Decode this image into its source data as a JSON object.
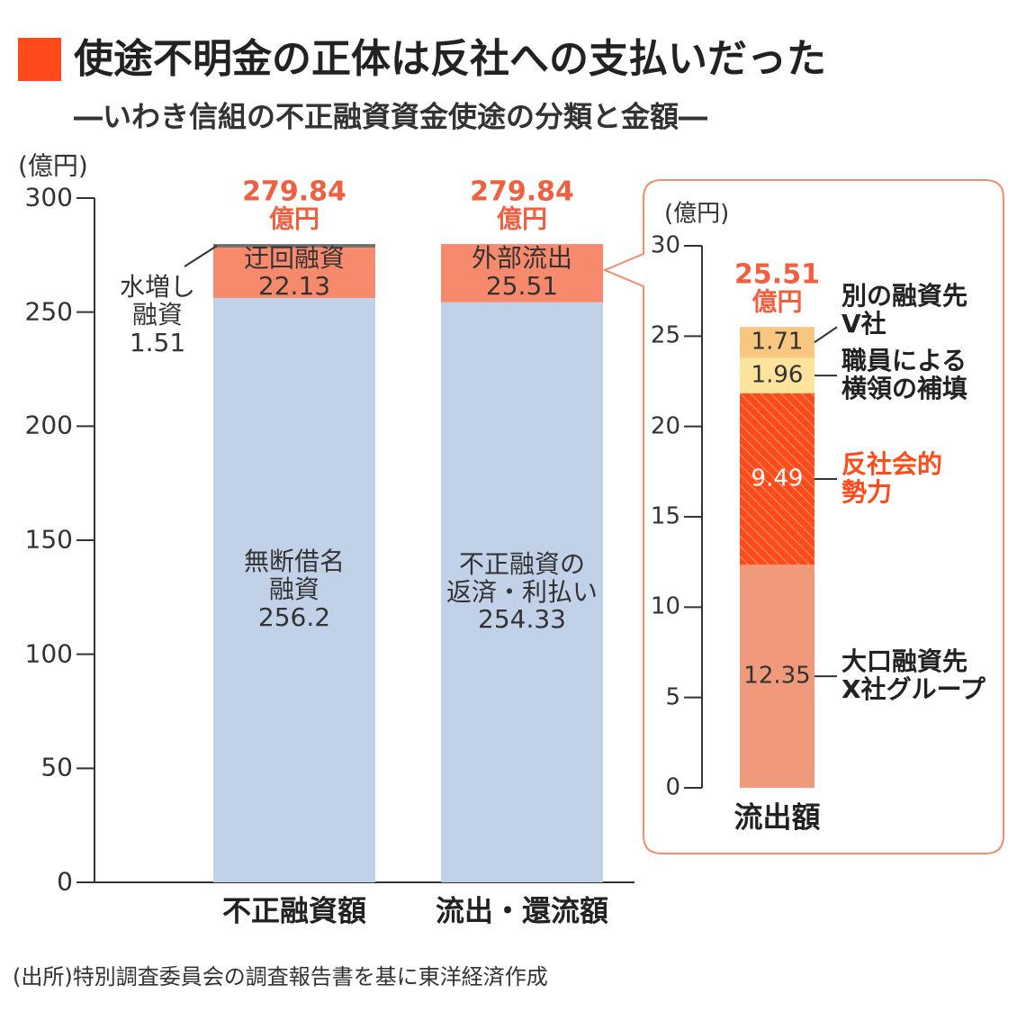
{
  "title": "使途不明金の正体は反社への支払いだった",
  "subtitle": "―いわき信組の不正融資資金使途の分類と金額―",
  "source": "(出所)特別調査委員会の調査報告書を基に東洋経済作成",
  "chart_data": [
    {
      "type": "stacked_bar",
      "y_unit": "(億円)",
      "categories": [
        "不正融資額",
        "流出・還流額"
      ],
      "ylim": [
        0,
        300
      ],
      "yticks": [
        0,
        50,
        100,
        150,
        200,
        250,
        300
      ],
      "totals": [
        279.84,
        279.84
      ],
      "total_unit": "億円",
      "stacks": [
        [
          {
            "name": "無断借名\n融資",
            "value": 256.2,
            "color": "#c1d1e7"
          },
          {
            "name": "迂回融資",
            "value": 22.13,
            "color": "#f7896d"
          },
          {
            "name": "水増し\n融資",
            "value": 1.51,
            "color": "#6e6e6e"
          }
        ],
        [
          {
            "name": "不正融資の\n返済・利払い",
            "value": 254.33,
            "color": "#c1d1e7"
          },
          {
            "name": "外部流出",
            "value": 25.51,
            "color": "#f7896d"
          }
        ]
      ]
    },
    {
      "type": "stacked_bar",
      "y_unit": "(億円)",
      "categories": [
        "流出額"
      ],
      "ylim": [
        0,
        30
      ],
      "yticks": [
        0,
        5,
        10,
        15,
        20,
        25,
        30
      ],
      "totals": [
        25.51
      ],
      "total_unit": "億円",
      "stacks": [
        [
          {
            "name": "大口融資先\nX社グループ",
            "value": 12.35,
            "color": "#f09a7b"
          },
          {
            "name": "反社会的\n勢力",
            "value": 9.49,
            "color": "#ff4a1c",
            "hatch": true,
            "highlight": true
          },
          {
            "name": "職員による\n横領の補填",
            "value": 1.96,
            "color": "#fde39c"
          },
          {
            "name": "別の融資先\nV社",
            "value": 1.71,
            "color": "#f8c77f"
          }
        ]
      ]
    }
  ]
}
